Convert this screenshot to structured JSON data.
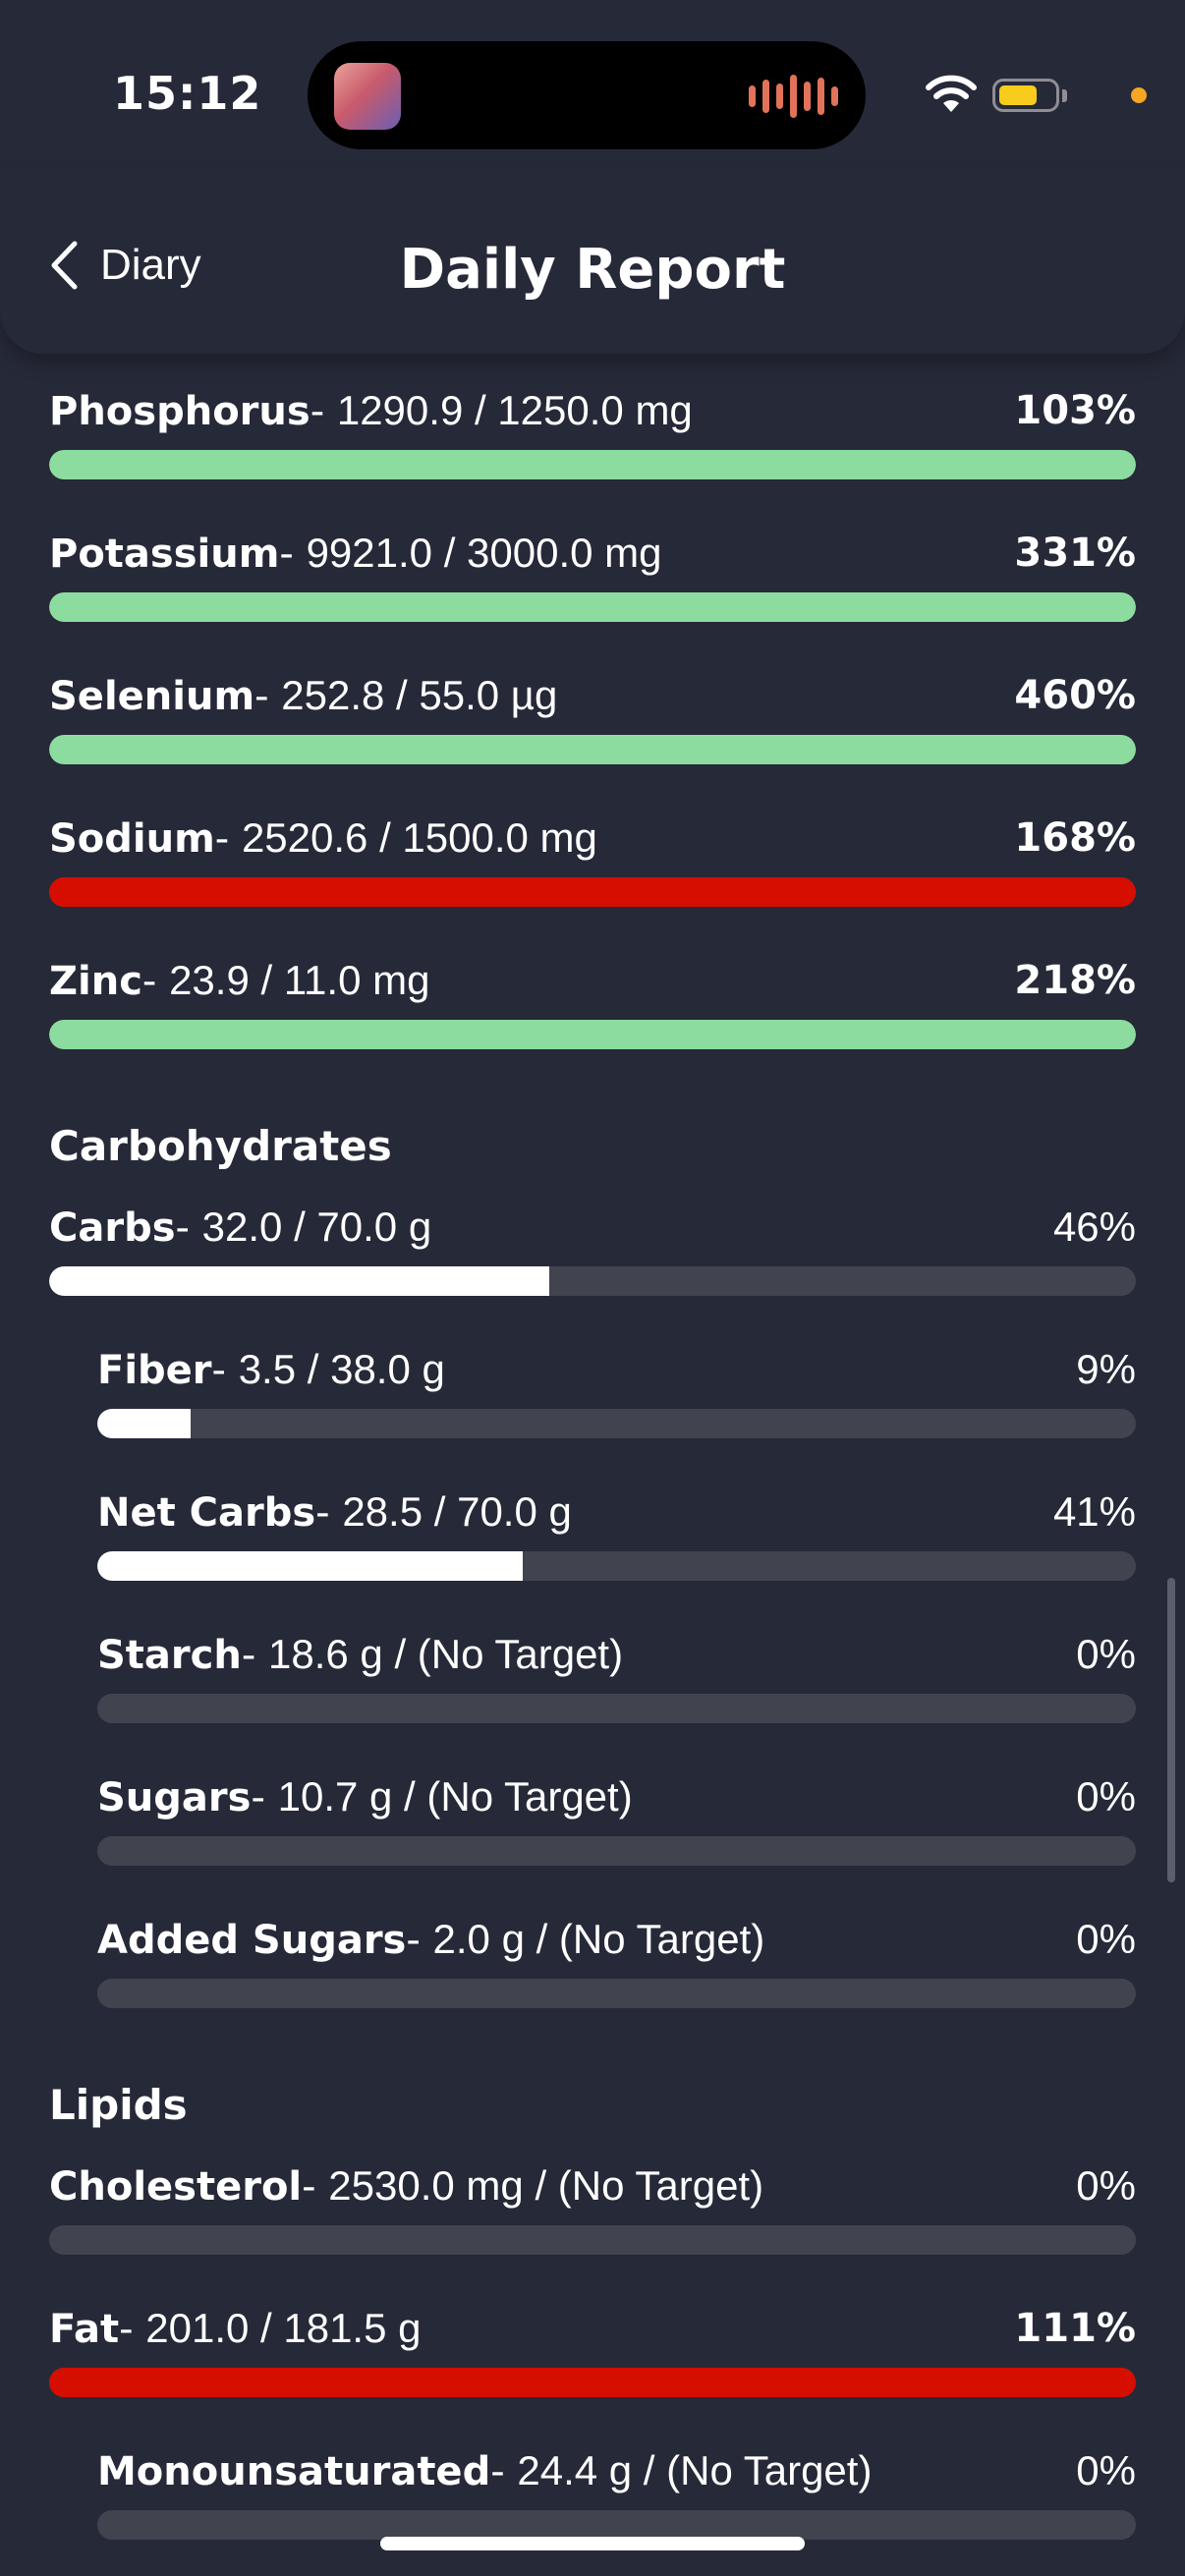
{
  "status_bar": {
    "time": "15:12"
  },
  "header": {
    "back_label": "Diary",
    "title": "Daily Report"
  },
  "colors": {
    "background": "#262938",
    "track": "#41434f",
    "green": "#8ddc9f",
    "red": "#d50e00",
    "white": "#ffffff"
  },
  "minerals": [
    {
      "name": "Phosphorus",
      "value": "1290.9 / 1250.0 mg",
      "percent": "103%",
      "fill": 1.0,
      "status": "green"
    },
    {
      "name": "Potassium",
      "value": "9921.0 / 3000.0 mg",
      "percent": "331%",
      "fill": 1.0,
      "status": "green"
    },
    {
      "name": "Selenium",
      "value": "252.8 / 55.0 µg",
      "percent": "460%",
      "fill": 1.0,
      "status": "green"
    },
    {
      "name": "Sodium",
      "value": "2520.6 / 1500.0 mg",
      "percent": "168%",
      "fill": 1.0,
      "status": "red"
    },
    {
      "name": "Zinc",
      "value": "23.9 / 11.0 mg",
      "percent": "218%",
      "fill": 1.0,
      "status": "green"
    }
  ],
  "carbohydrates": {
    "heading": "Carbohydrates",
    "items": [
      {
        "name": "Carbs",
        "value": "32.0 / 70.0 g",
        "percent": "46%",
        "fill": 0.46,
        "status": "white",
        "sub": false
      },
      {
        "name": "Fiber",
        "value": "3.5 / 38.0 g",
        "percent": "9%",
        "fill": 0.09,
        "status": "white",
        "sub": true
      },
      {
        "name": "Net Carbs",
        "value": "28.5 / 70.0 g",
        "percent": "41%",
        "fill": 0.41,
        "status": "white",
        "sub": true
      },
      {
        "name": "Starch",
        "value": "18.6 g / (No Target)",
        "percent": "0%",
        "fill": 0,
        "status": "none",
        "sub": true
      },
      {
        "name": "Sugars",
        "value": "10.7 g / (No Target)",
        "percent": "0%",
        "fill": 0,
        "status": "none",
        "sub": true
      },
      {
        "name": "Added Sugars",
        "value": "2.0 g / (No Target)",
        "percent": "0%",
        "fill": 0,
        "status": "none",
        "sub": true
      }
    ]
  },
  "lipids": {
    "heading": "Lipids",
    "items": [
      {
        "name": "Cholesterol",
        "value": "2530.0 mg / (No Target)",
        "percent": "0%",
        "fill": 0,
        "status": "none",
        "sub": false
      },
      {
        "name": "Fat",
        "value": "201.0 / 181.5 g",
        "percent": "111%",
        "fill": 1.0,
        "status": "red",
        "sub": false
      },
      {
        "name": "Monounsaturated",
        "value": "24.4 g / (No Target)",
        "percent": "0%",
        "fill": 0,
        "status": "none",
        "sub": true
      }
    ]
  }
}
